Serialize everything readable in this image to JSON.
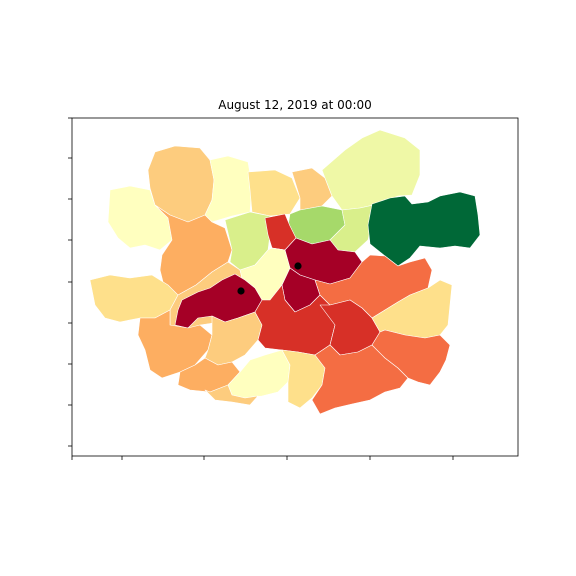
{
  "title": "August 12, 2019 at 00:00",
  "colors": {
    "light_yellow": "#ffffbf",
    "pale_yellow": "#fee08b",
    "light_orange": "#fdcc7e",
    "orange": "#fdae61",
    "dark_orange": "#f46d43",
    "red": "#d73027",
    "dark_red": "#a50026",
    "pale_green": "#eff8a6",
    "light_green": "#d9ef8b",
    "green": "#a6d96a",
    "dark_green": "#006837",
    "marker": "#000000"
  },
  "markers": [
    {
      "name": "marker-a"
    },
    {
      "name": "marker-b"
    }
  ],
  "axes": {
    "x_ticks": 5,
    "y_ticks": 9,
    "tick_labels_visible": false
  }
}
